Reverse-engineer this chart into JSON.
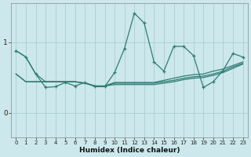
{
  "xlabel": "Humidex (Indice chaleur)",
  "bg_color": "#cce8ec",
  "line_color": "#2e7d73",
  "grid_color": "#aacdd4",
  "xlim": [
    -0.5,
    23.5
  ],
  "ylim": [
    -0.35,
    1.55
  ],
  "yticks": [
    0,
    1
  ],
  "xticks": [
    0,
    1,
    2,
    3,
    4,
    5,
    6,
    7,
    8,
    9,
    10,
    11,
    12,
    13,
    14,
    15,
    16,
    17,
    18,
    19,
    20,
    21,
    22,
    23
  ],
  "s1_x": [
    0,
    1,
    2,
    3,
    4,
    5,
    6,
    7,
    8,
    9,
    10,
    11,
    12,
    13,
    14,
    15,
    16,
    17,
    18,
    19,
    20,
    21,
    22,
    23
  ],
  "s1_y": [
    0.88,
    0.79,
    0.55,
    0.36,
    0.37,
    0.43,
    0.38,
    0.43,
    0.37,
    0.37,
    0.57,
    0.91,
    1.41,
    1.27,
    0.72,
    0.59,
    0.94,
    0.94,
    0.81,
    0.36,
    0.44,
    0.6,
    0.84,
    0.79
  ],
  "s2_x": [
    0,
    1,
    2,
    3,
    4,
    5,
    6,
    7,
    8,
    9,
    10,
    11,
    12,
    13,
    14,
    15,
    16,
    17,
    18,
    19,
    20,
    21,
    22,
    23
  ],
  "s2_y": [
    0.55,
    0.44,
    0.44,
    0.44,
    0.44,
    0.44,
    0.44,
    0.42,
    0.38,
    0.38,
    0.42,
    0.42,
    0.42,
    0.42,
    0.42,
    0.44,
    0.46,
    0.49,
    0.51,
    0.52,
    0.55,
    0.59,
    0.65,
    0.7
  ],
  "s3_x": [
    0,
    1,
    2,
    3,
    4,
    5,
    6,
    7,
    8,
    9,
    10,
    11,
    12,
    13,
    14,
    15,
    16,
    17,
    18,
    19,
    20,
    21,
    22,
    23
  ],
  "s3_y": [
    0.55,
    0.44,
    0.44,
    0.44,
    0.44,
    0.44,
    0.44,
    0.42,
    0.38,
    0.38,
    0.4,
    0.4,
    0.4,
    0.4,
    0.4,
    0.42,
    0.44,
    0.47,
    0.49,
    0.5,
    0.53,
    0.57,
    0.63,
    0.69
  ],
  "s4_x": [
    0,
    1,
    2,
    3,
    4,
    5,
    6,
    7,
    8,
    9,
    10,
    11,
    12,
    13,
    14,
    15,
    16,
    17,
    18,
    19,
    20,
    21,
    22,
    23
  ],
  "s4_y": [
    0.88,
    0.79,
    0.55,
    0.44,
    0.44,
    0.44,
    0.44,
    0.42,
    0.38,
    0.38,
    0.43,
    0.43,
    0.43,
    0.43,
    0.43,
    0.46,
    0.49,
    0.52,
    0.54,
    0.55,
    0.59,
    0.62,
    0.67,
    0.72
  ]
}
